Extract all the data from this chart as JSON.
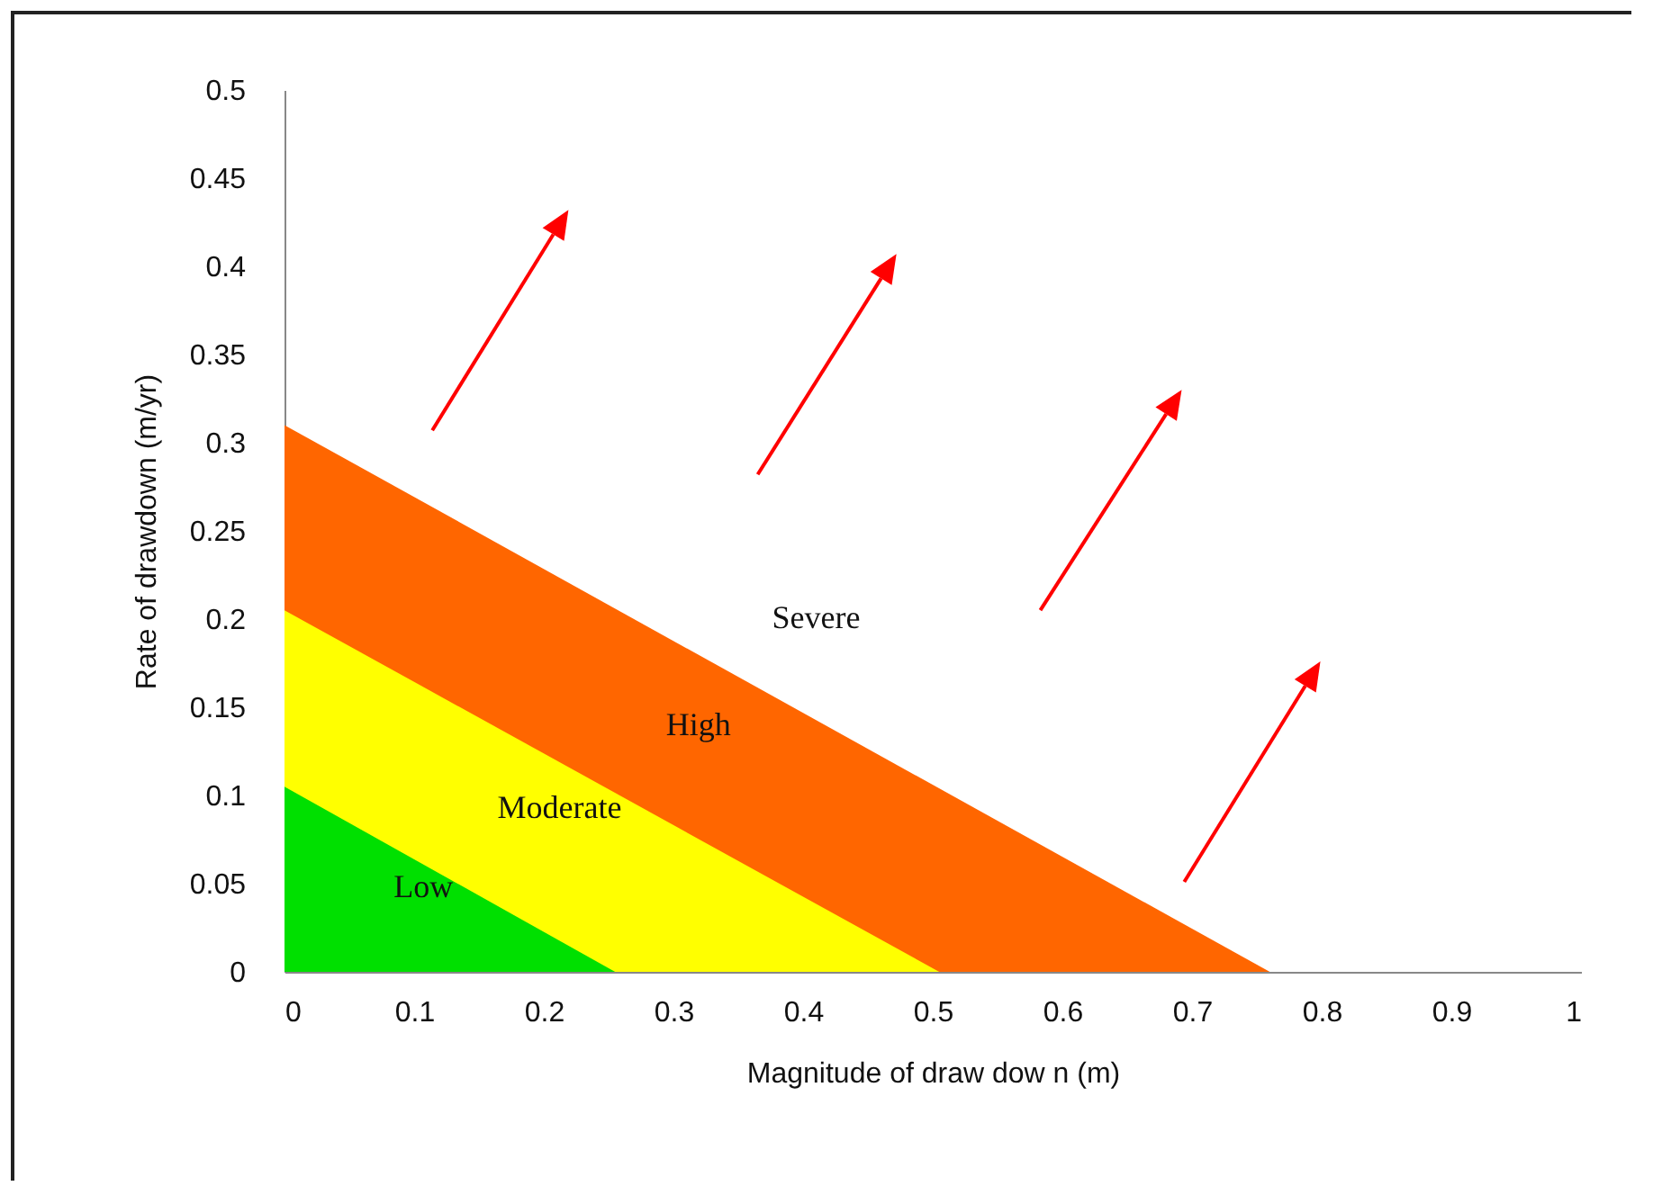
{
  "chart_data": {
    "type": "area",
    "xlabel": "Magnitude of draw dow n (m)",
    "ylabel": "Rate of drawdown (m/yr)",
    "series": [
      {
        "name": "Low",
        "color": "#00e000",
        "x": [
          0,
          0.255
        ],
        "values": [
          0.105,
          0
        ]
      },
      {
        "name": "Moderate",
        "color": "#ffff00",
        "x": [
          0,
          0.505
        ],
        "values": [
          0.205,
          0
        ]
      },
      {
        "name": "High",
        "color": "#ff6600",
        "x": [
          0,
          0.76
        ],
        "values": [
          0.31,
          0
        ]
      }
    ],
    "annotations": [
      "Severe"
    ],
    "xlim": [
      0,
      1
    ],
    "xticks": [
      0,
      0.1,
      0.2,
      0.3,
      0.4,
      0.5,
      0.6,
      0.7,
      0.8,
      0.9,
      1
    ],
    "ylim": [
      0,
      0.5
    ],
    "yticks": [
      0,
      0.05,
      0.1,
      0.15,
      0.2,
      0.25,
      0.3,
      0.35,
      0.4,
      0.45,
      0.5
    ],
    "tick_labels": true
  }
}
